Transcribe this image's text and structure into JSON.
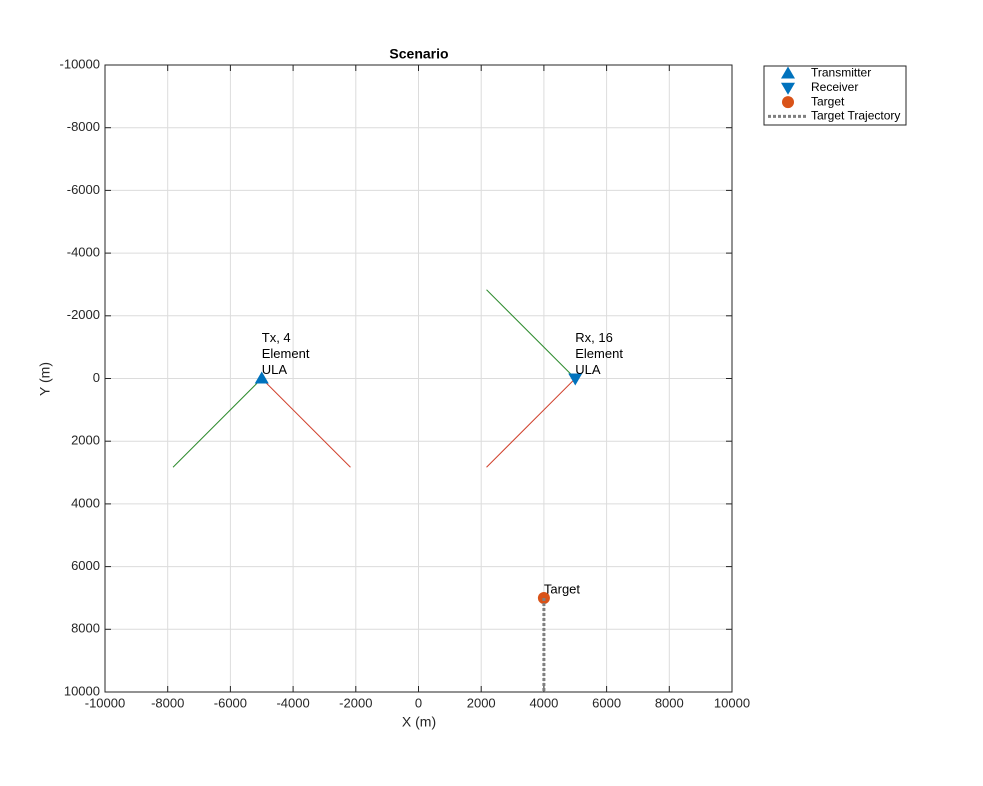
{
  "chart_data": {
    "type": "scatter",
    "title": "Scenario",
    "xlabel": "X (m)",
    "ylabel": "Y (m)",
    "xlim": [
      -10000,
      10000
    ],
    "ylim": [
      -10000,
      10000
    ],
    "y_reversed": true,
    "xticks": [
      -10000,
      -8000,
      -6000,
      -4000,
      -2000,
      0,
      2000,
      4000,
      6000,
      8000,
      10000
    ],
    "yticks": [
      -10000,
      -8000,
      -6000,
      -4000,
      -2000,
      0,
      2000,
      4000,
      6000,
      8000,
      10000
    ],
    "grid": true,
    "legend": "northeastoutside",
    "series": [
      {
        "name": "Transmitter",
        "color": "#0072bd",
        "marker": "triangle-up",
        "x": [
          -5000
        ],
        "y": [
          0
        ]
      },
      {
        "name": "Receiver",
        "color": "#0072bd",
        "marker": "triangle-down",
        "x": [
          5000
        ],
        "y": [
          0
        ]
      },
      {
        "name": "Target",
        "color": "#d95319",
        "marker": "circle",
        "x": [
          4000
        ],
        "y": [
          7000
        ]
      },
      {
        "name": "Target Trajectory",
        "color": "#7f7f7f",
        "line_style": "dotted",
        "x": [
          4000,
          4000
        ],
        "y": [
          7000,
          10000
        ]
      }
    ],
    "beams": [
      {
        "color": "#2e8b2e",
        "x": [
          -5000,
          -7830
        ],
        "y": [
          0,
          2830
        ]
      },
      {
        "color": "#d0402c",
        "x": [
          -5000,
          -2170
        ],
        "y": [
          0,
          2830
        ]
      },
      {
        "color": "#2e8b2e",
        "x": [
          5000,
          2170
        ],
        "y": [
          0,
          -2830
        ]
      },
      {
        "color": "#d0402c",
        "x": [
          5000,
          2170
        ],
        "y": [
          0,
          2830
        ]
      }
    ],
    "annotations": [
      {
        "lines": [
          "Tx, 4",
          "Element",
          "ULA"
        ],
        "x": -5000,
        "y": 0
      },
      {
        "lines": [
          "Rx, 16",
          "Element",
          "ULA"
        ],
        "x": 5000,
        "y": 0
      },
      {
        "lines": [
          "Target"
        ],
        "x": 4000,
        "y": 7000
      }
    ]
  }
}
